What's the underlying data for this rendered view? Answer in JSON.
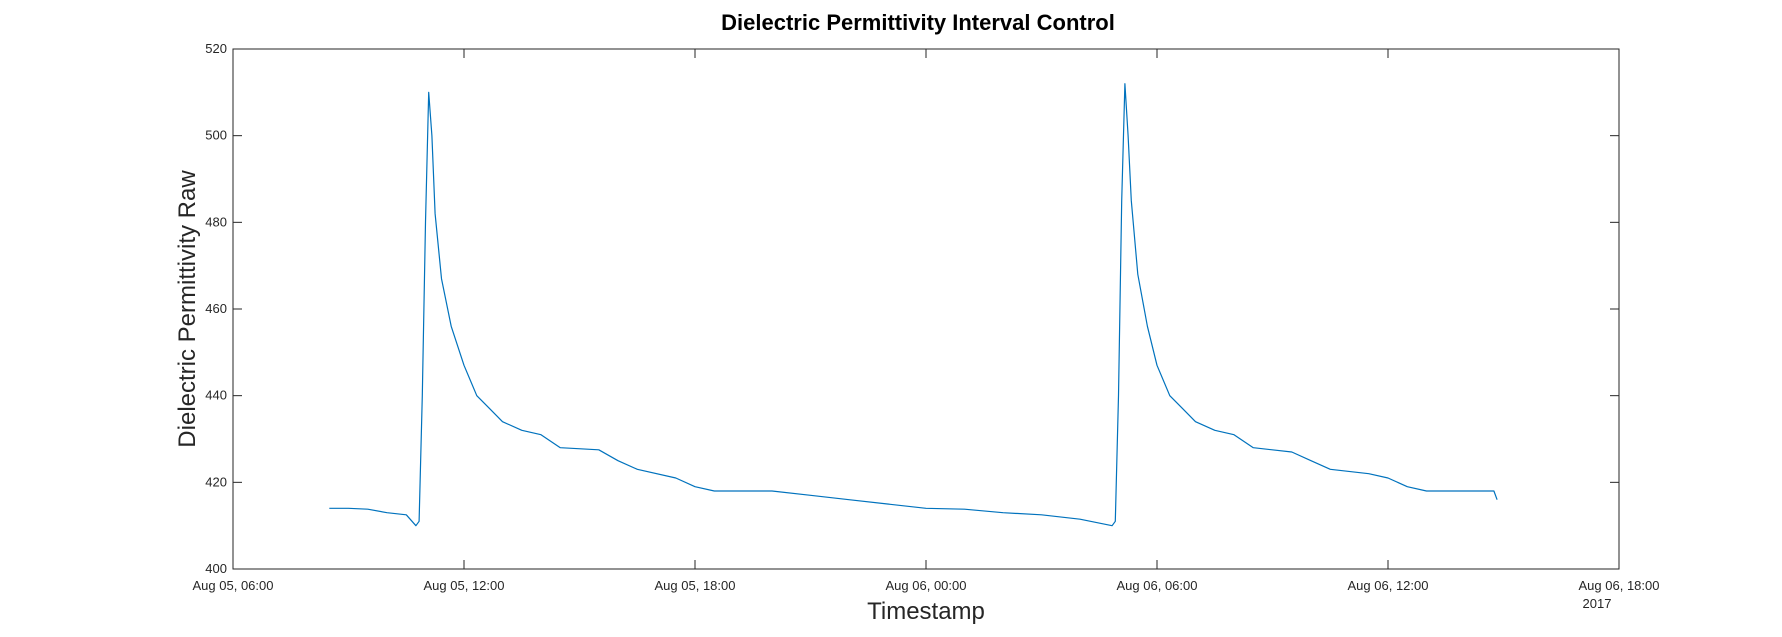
{
  "chart_data": {
    "type": "line",
    "title": "Dielectric Permittivity Interval Control",
    "xlabel": "Timestamp",
    "ylabel": "Dielectric Permittivity Raw",
    "year_label": "2017",
    "xlim": [
      "2017-08-05 06:00",
      "2017-08-06 18:00"
    ],
    "ylim": [
      400,
      520
    ],
    "grid": false,
    "legend": "none",
    "x_ticks": [
      {
        "t": "2017-08-05 06:00",
        "label": "Aug 05, 06:00"
      },
      {
        "t": "2017-08-05 12:00",
        "label": "Aug 05, 12:00"
      },
      {
        "t": "2017-08-05 18:00",
        "label": "Aug 05, 18:00"
      },
      {
        "t": "2017-08-06 00:00",
        "label": "Aug 06, 00:00"
      },
      {
        "t": "2017-08-06 06:00",
        "label": "Aug 06, 06:00"
      },
      {
        "t": "2017-08-06 12:00",
        "label": "Aug 06, 12:00"
      },
      {
        "t": "2017-08-06 18:00",
        "label": "Aug 06, 18:00"
      }
    ],
    "y_ticks": [
      400,
      420,
      440,
      460,
      480,
      500,
      520
    ],
    "series": [
      {
        "color": "#0072BD",
        "points": [
          [
            "2017-08-05 08:30",
            414.0
          ],
          [
            "2017-08-05 09:00",
            414.0
          ],
          [
            "2017-08-05 09:30",
            413.8
          ],
          [
            "2017-08-05 10:00",
            413.0
          ],
          [
            "2017-08-05 10:30",
            412.5
          ],
          [
            "2017-08-05 10:45",
            410.0
          ],
          [
            "2017-08-05 10:50",
            411.0
          ],
          [
            "2017-08-05 10:55",
            440.0
          ],
          [
            "2017-08-05 11:00",
            480.0
          ],
          [
            "2017-08-05 11:05",
            510.0
          ],
          [
            "2017-08-05 11:10",
            500.0
          ],
          [
            "2017-08-05 11:15",
            482.0
          ],
          [
            "2017-08-05 11:25",
            467.0
          ],
          [
            "2017-08-05 11:40",
            456.0
          ],
          [
            "2017-08-05 12:00",
            447.0
          ],
          [
            "2017-08-05 12:20",
            440.0
          ],
          [
            "2017-08-05 12:40",
            437.0
          ],
          [
            "2017-08-05 13:00",
            434.0
          ],
          [
            "2017-08-05 13:30",
            432.0
          ],
          [
            "2017-08-05 14:00",
            431.0
          ],
          [
            "2017-08-05 14:30",
            428.0
          ],
          [
            "2017-08-05 15:30",
            427.5
          ],
          [
            "2017-08-05 16:00",
            425.0
          ],
          [
            "2017-08-05 16:30",
            423.0
          ],
          [
            "2017-08-05 17:30",
            421.0
          ],
          [
            "2017-08-05 18:00",
            419.0
          ],
          [
            "2017-08-05 18:30",
            418.0
          ],
          [
            "2017-08-05 20:00",
            418.0
          ],
          [
            "2017-08-05 21:00",
            417.0
          ],
          [
            "2017-08-05 22:00",
            416.0
          ],
          [
            "2017-08-05 23:00",
            415.0
          ],
          [
            "2017-08-06 00:00",
            414.0
          ],
          [
            "2017-08-06 01:00",
            413.8
          ],
          [
            "2017-08-06 02:00",
            413.0
          ],
          [
            "2017-08-06 03:00",
            412.5
          ],
          [
            "2017-08-06 04:00",
            411.5
          ],
          [
            "2017-08-06 04:50",
            410.0
          ],
          [
            "2017-08-06 04:55",
            411.0
          ],
          [
            "2017-08-06 05:00",
            440.0
          ],
          [
            "2017-08-06 05:05",
            485.0
          ],
          [
            "2017-08-06 05:10",
            512.0
          ],
          [
            "2017-08-06 05:15",
            500.0
          ],
          [
            "2017-08-06 05:20",
            485.0
          ],
          [
            "2017-08-06 05:30",
            468.0
          ],
          [
            "2017-08-06 05:45",
            456.0
          ],
          [
            "2017-08-06 06:00",
            447.0
          ],
          [
            "2017-08-06 06:20",
            440.0
          ],
          [
            "2017-08-06 06:40",
            437.0
          ],
          [
            "2017-08-06 07:00",
            434.0
          ],
          [
            "2017-08-06 07:30",
            432.0
          ],
          [
            "2017-08-06 08:00",
            431.0
          ],
          [
            "2017-08-06 08:30",
            428.0
          ],
          [
            "2017-08-06 09:30",
            427.0
          ],
          [
            "2017-08-06 10:00",
            425.0
          ],
          [
            "2017-08-06 10:30",
            423.0
          ],
          [
            "2017-08-06 11:30",
            422.0
          ],
          [
            "2017-08-06 12:00",
            421.0
          ],
          [
            "2017-08-06 12:30",
            419.0
          ],
          [
            "2017-08-06 13:00",
            418.0
          ],
          [
            "2017-08-06 14:00",
            418.0
          ],
          [
            "2017-08-06 14:45",
            418.0
          ],
          [
            "2017-08-06 14:50",
            416.0
          ]
        ]
      }
    ]
  }
}
